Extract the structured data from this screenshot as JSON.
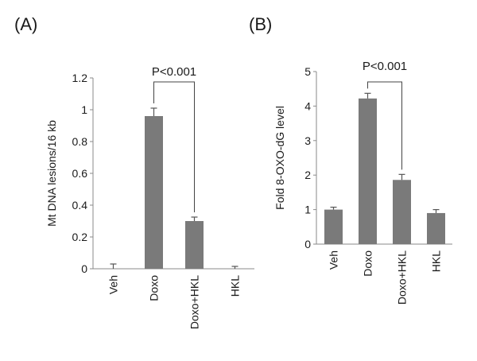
{
  "chart_data": [
    {
      "type": "bar",
      "panel_label": "(A)",
      "categories": [
        "Veh",
        "Doxo",
        "Doxo+HKL",
        "HKL"
      ],
      "values": [
        0.0,
        0.96,
        0.3,
        0.0
      ],
      "errors": [
        0.03,
        0.05,
        0.025,
        0.015
      ],
      "ylabel": "Mt DNA lesions/16 kb",
      "ylim": [
        0,
        1.2
      ],
      "yticks": [
        "0",
        "0.2",
        "0.4",
        "0.6",
        "0.8",
        "1",
        "1.2"
      ],
      "annotation": {
        "text": "P<0.001",
        "from": "Doxo",
        "to": "Doxo+HKL"
      },
      "bar_color": "#7a7a7a",
      "grid": false,
      "legend": "none"
    },
    {
      "type": "bar",
      "panel_label": "(B)",
      "categories": [
        "Veh",
        "Doxo",
        "Doxo+HKL",
        "HKL"
      ],
      "values": [
        1.0,
        4.22,
        1.86,
        0.9
      ],
      "errors": [
        0.07,
        0.15,
        0.16,
        0.1
      ],
      "ylabel": "Fold 8-OXO-dG level",
      "ylim": [
        0,
        5
      ],
      "yticks": [
        "0",
        "1",
        "2",
        "3",
        "4",
        "5"
      ],
      "annotation": {
        "text": "P<0.001",
        "from": "Doxo",
        "to": "Doxo+HKL"
      },
      "bar_color": "#7a7a7a",
      "grid": false,
      "legend": "none"
    }
  ]
}
